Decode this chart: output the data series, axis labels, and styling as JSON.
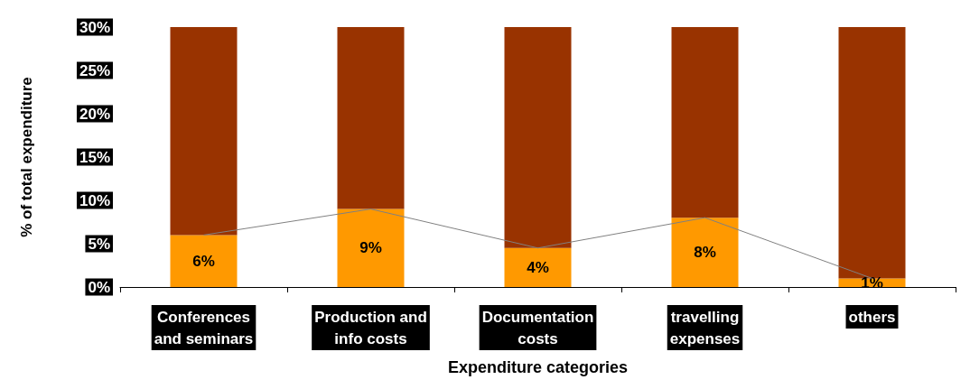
{
  "chart_data": {
    "type": "bar",
    "stacked": true,
    "xlabel": "Expenditure categories",
    "ylabel": "% of total expenditure",
    "categories": [
      "Conferences\nand seminars",
      "Production and\ninfo costs",
      "Documentation\ncosts",
      "travelling\nexpenses",
      "others"
    ],
    "series": [
      {
        "color": "#ff9900",
        "values": [
          6,
          9,
          4.5,
          8,
          1
        ],
        "value_labels": [
          "6%",
          "9%",
          "4%",
          "8%",
          "1%"
        ]
      },
      {
        "color": "#993300",
        "values": [
          24,
          21,
          25.5,
          22,
          29
        ]
      },
      {
        "type": "line",
        "color": "#808080",
        "values": [
          6,
          9,
          4.5,
          8,
          1
        ]
      }
    ],
    "ylim": [
      0,
      30
    ],
    "yticks": [
      {
        "value": 0,
        "label": "0%"
      },
      {
        "value": 5,
        "label": "5%"
      },
      {
        "value": 10,
        "label": "10%"
      },
      {
        "value": 15,
        "label": "15%"
      },
      {
        "value": 20,
        "label": "20%"
      },
      {
        "value": 25,
        "label": "25%"
      },
      {
        "value": 30,
        "label": "30%"
      }
    ],
    "grid": false
  }
}
